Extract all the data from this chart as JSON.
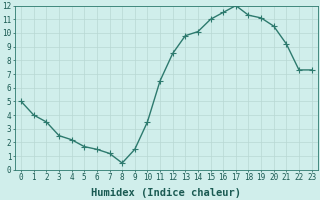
{
  "x": [
    0,
    1,
    2,
    3,
    4,
    5,
    6,
    7,
    8,
    9,
    10,
    11,
    12,
    13,
    14,
    15,
    16,
    17,
    18,
    19,
    20,
    21,
    22,
    23
  ],
  "y": [
    5.0,
    4.0,
    3.5,
    2.5,
    2.2,
    1.7,
    1.5,
    1.2,
    0.5,
    1.5,
    3.5,
    6.5,
    8.5,
    9.8,
    10.1,
    11.0,
    11.5,
    12.0,
    11.3,
    11.1,
    10.5,
    9.2,
    7.3,
    7.3
  ],
  "line_color": "#2d7a6e",
  "marker": "+",
  "marker_size": 4,
  "bg_color": "#d0eeeb",
  "grid_color": "#b8d8d4",
  "xlabel": "Humidex (Indice chaleur)",
  "xlim_min": -0.5,
  "xlim_max": 23.5,
  "ylim_min": 0,
  "ylim_max": 12,
  "label_color": "#1a5a52",
  "tick_fontsize": 5.5,
  "xlabel_fontsize": 7.5,
  "linewidth": 1.0,
  "markeredgewidth": 0.8
}
